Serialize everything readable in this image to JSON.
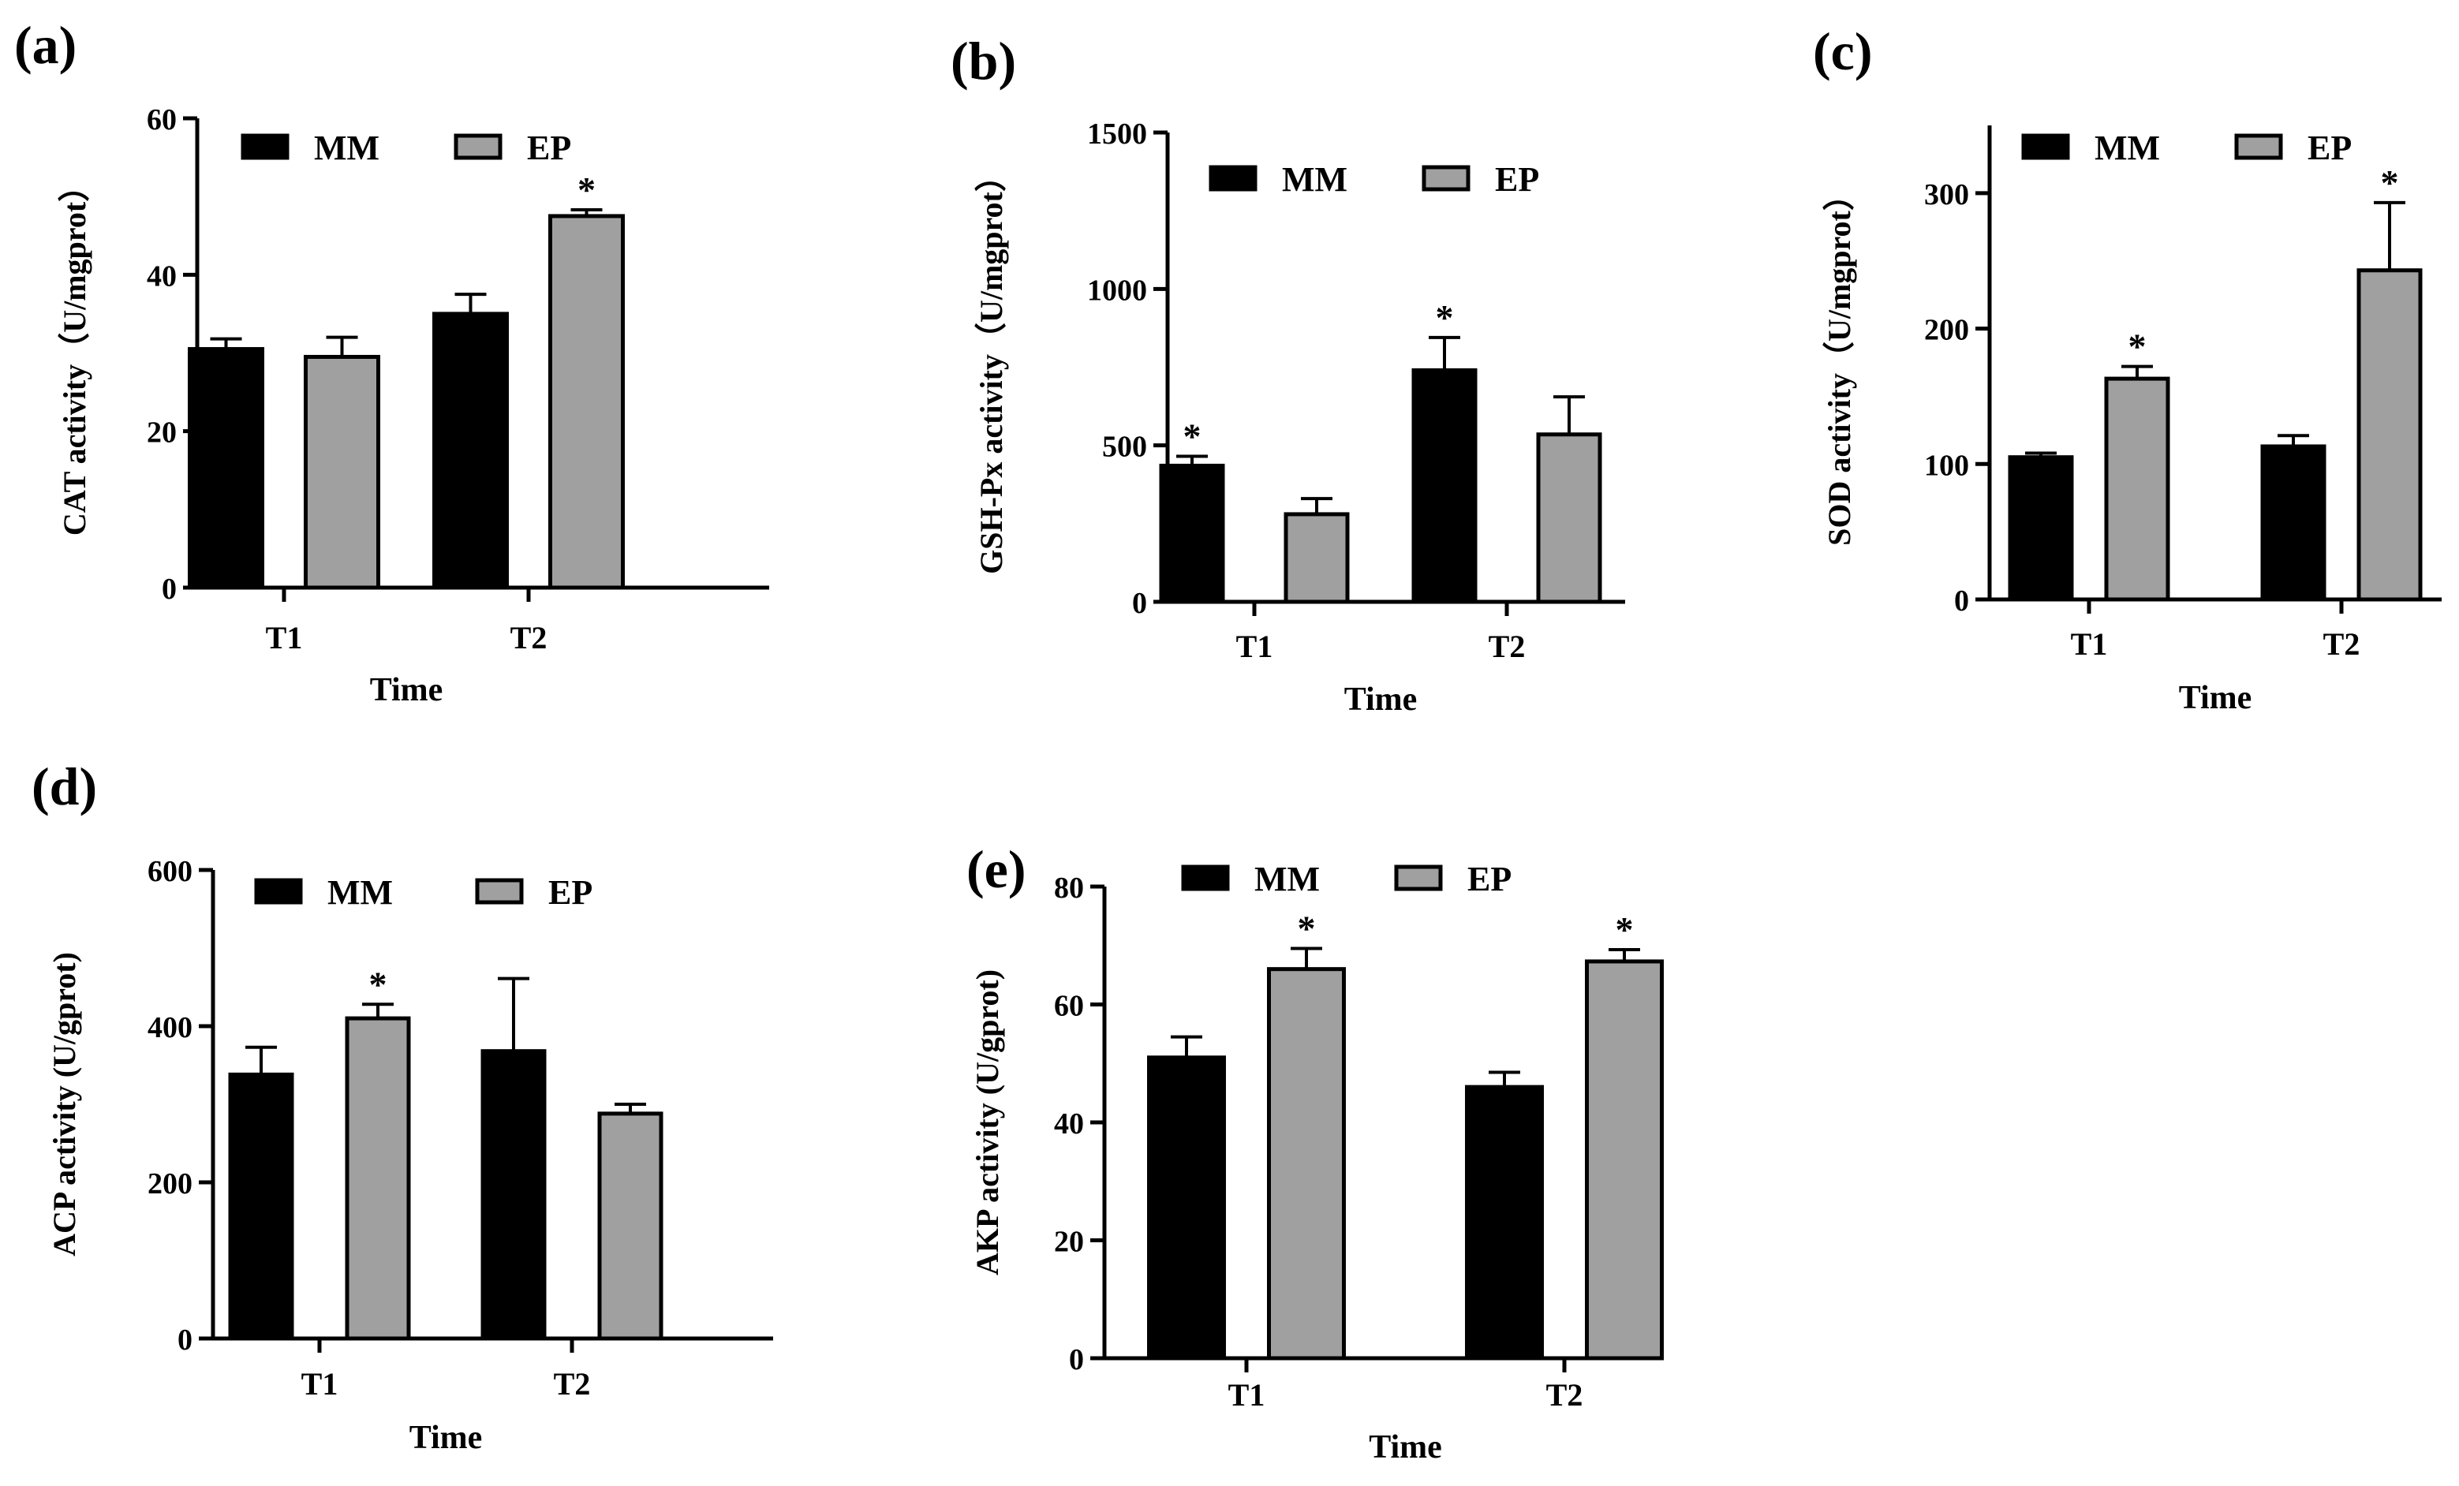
{
  "legend": {
    "mm": "MM",
    "ep": "EP"
  },
  "colors": {
    "mm": "#000000",
    "ep": "#a0a0a0",
    "axis": "#000000"
  },
  "chart_data": [
    {
      "id": "a",
      "panel_label": "(a)",
      "type": "bar",
      "xlabel": "Time",
      "ylabel": "CAT activity（U/mgprot）",
      "categories": [
        "T1",
        "T2"
      ],
      "ylim": [
        0,
        60
      ],
      "yticks": [
        0,
        20,
        40,
        60
      ],
      "legend_position": "top",
      "series": [
        {
          "name": "MM",
          "values": [
            30.5,
            35.0
          ],
          "errors": [
            1.3,
            2.5
          ],
          "sig": [
            "",
            ""
          ]
        },
        {
          "name": "EP",
          "values": [
            29.5,
            47.5
          ],
          "errors": [
            2.5,
            0.8
          ],
          "sig": [
            "",
            "*"
          ]
        }
      ]
    },
    {
      "id": "b",
      "panel_label": "(b)",
      "type": "bar",
      "xlabel": "Time",
      "ylabel": "GSH-Px activity（U/mgprot）",
      "categories": [
        "T1",
        "T2"
      ],
      "ylim": [
        0,
        1500
      ],
      "yticks": [
        0,
        500,
        1000,
        1500
      ],
      "legend_position": "top",
      "series": [
        {
          "name": "MM",
          "values": [
            435,
            740
          ],
          "errors": [
            30,
            105
          ],
          "sig": [
            "*",
            "*"
          ]
        },
        {
          "name": "EP",
          "values": [
            280,
            535
          ],
          "errors": [
            50,
            120
          ],
          "sig": [
            "",
            ""
          ]
        }
      ]
    },
    {
      "id": "c",
      "panel_label": "(c)",
      "type": "bar",
      "xlabel": "Time",
      "ylabel": "SOD activity（U/mgprot）",
      "categories": [
        "T1",
        "T2"
      ],
      "ylim": [
        0,
        350
      ],
      "yticks": [
        0,
        100,
        200,
        300
      ],
      "legend_position": "top",
      "series": [
        {
          "name": "MM",
          "values": [
            105,
            113
          ],
          "errors": [
            3,
            8
          ],
          "sig": [
            "",
            ""
          ]
        },
        {
          "name": "EP",
          "values": [
            163,
            243
          ],
          "errors": [
            9,
            50
          ],
          "sig": [
            "*",
            "*"
          ]
        }
      ]
    },
    {
      "id": "d",
      "panel_label": "(d)",
      "type": "bar",
      "xlabel": "Time",
      "ylabel": "ACP activity (U/gprot)",
      "categories": [
        "T1",
        "T2"
      ],
      "ylim": [
        0,
        600
      ],
      "yticks": [
        0,
        200,
        400,
        600
      ],
      "legend_position": "top",
      "series": [
        {
          "name": "MM",
          "values": [
            338,
            368
          ],
          "errors": [
            35,
            93
          ],
          "sig": [
            "",
            ""
          ]
        },
        {
          "name": "EP",
          "values": [
            410,
            288
          ],
          "errors": [
            18,
            12
          ],
          "sig": [
            "*",
            ""
          ]
        }
      ]
    },
    {
      "id": "e",
      "panel_label": "(e)",
      "type": "bar",
      "xlabel": "Time",
      "ylabel": "AKP activity (U/gprot)",
      "categories": [
        "T1",
        "T2"
      ],
      "ylim": [
        0,
        80
      ],
      "yticks": [
        0,
        20,
        40,
        60,
        80
      ],
      "legend_position": "top",
      "series": [
        {
          "name": "MM",
          "values": [
            51,
            46
          ],
          "errors": [
            3.5,
            2.5
          ],
          "sig": [
            "",
            ""
          ]
        },
        {
          "name": "EP",
          "values": [
            66,
            67.3
          ],
          "errors": [
            3.5,
            2.0
          ],
          "sig": [
            "*",
            "*"
          ]
        }
      ]
    }
  ]
}
